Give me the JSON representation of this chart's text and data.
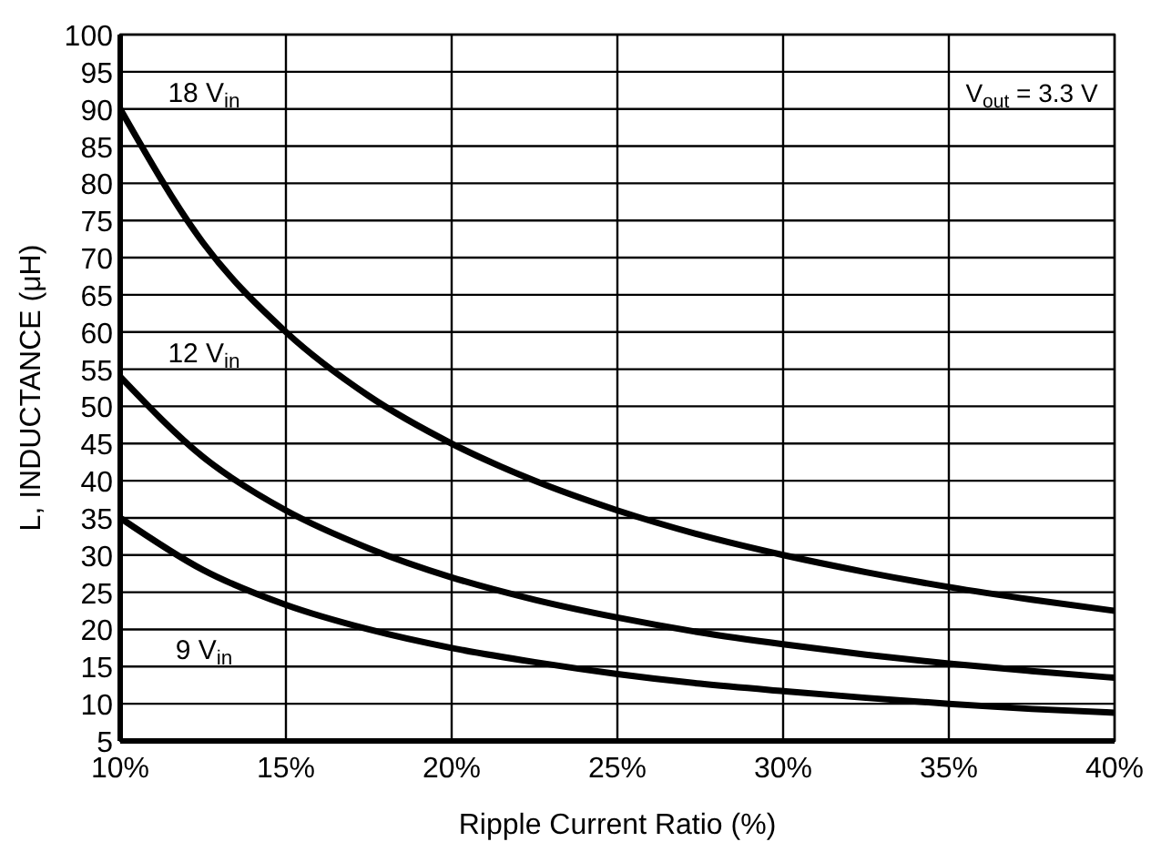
{
  "chart_data": {
    "type": "line",
    "xlabel": "Ripple Current Ratio (%)",
    "ylabel": "L, INDUCTANCE (μH)",
    "annotations": [
      "V$_{out}$ = 3.3 V"
    ],
    "x": [
      10,
      12.5,
      15,
      17.5,
      20,
      22.5,
      25,
      27.5,
      30,
      32.5,
      35,
      37.5,
      40
    ],
    "series": [
      {
        "name": "18 V$_{in}$",
        "color": "#000000",
        "values": [
          90,
          72,
          60,
          51.4,
          45,
          40,
          36,
          32.7,
          30,
          27.7,
          25.7,
          24,
          22.5
        ]
      },
      {
        "name": "12 V$_{in}$",
        "color": "#000000",
        "values": [
          54,
          43.2,
          36,
          30.9,
          27,
          24,
          21.6,
          19.6,
          18,
          16.6,
          15.4,
          14.4,
          13.5
        ]
      },
      {
        "name": "9 V$_{in}$",
        "color": "#000000",
        "values": [
          35,
          28,
          23.3,
          20,
          17.5,
          15.6,
          14,
          12.7,
          11.7,
          10.8,
          10,
          9.3,
          8.8
        ]
      }
    ],
    "xlim": [
      10,
      40
    ],
    "ylim": [
      5,
      100
    ],
    "xticks": [
      {
        "value": 10,
        "label": "10%"
      },
      {
        "value": 15,
        "label": "15%"
      },
      {
        "value": 20,
        "label": "20%"
      },
      {
        "value": 25,
        "label": "25%"
      },
      {
        "value": 30,
        "label": "30%"
      },
      {
        "value": 35,
        "label": "35%"
      },
      {
        "value": 40,
        "label": "40%"
      }
    ],
    "yticks": [
      5,
      10,
      15,
      20,
      25,
      30,
      35,
      40,
      45,
      50,
      55,
      60,
      65,
      70,
      75,
      80,
      85,
      90,
      95,
      100
    ],
    "grid": true,
    "legend": false,
    "line_style": "solid"
  }
}
